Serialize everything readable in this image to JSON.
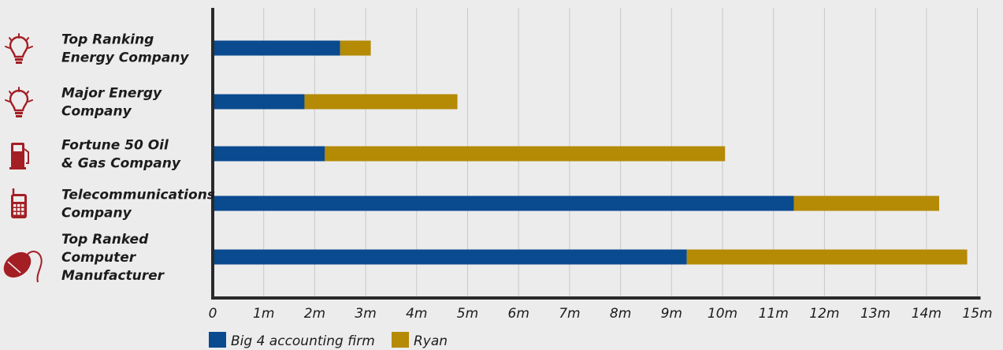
{
  "chart_data": {
    "type": "bar",
    "orientation": "horizontal",
    "stacked": true,
    "categories": [
      {
        "lines": [
          "Top Ranking",
          "Energy Company"
        ],
        "icon": "lightbulb-icon"
      },
      {
        "lines": [
          "Major Energy",
          "Company"
        ],
        "icon": "lightbulb-icon"
      },
      {
        "lines": [
          "Fortune 50 Oil",
          "& Gas Company"
        ],
        "icon": "fuel-pump-icon"
      },
      {
        "lines": [
          "Telecommunications",
          "Company"
        ],
        "icon": "mobile-phone-icon"
      },
      {
        "lines": [
          "Top Ranked",
          "Computer",
          "Manufacturer"
        ],
        "icon": "computer-mouse-icon"
      }
    ],
    "series": [
      {
        "name": "Big 4 accounting firm",
        "color": "#0a4a8f",
        "values": [
          2.5,
          1.8,
          2.2,
          11.4,
          9.3
        ]
      },
      {
        "name": "Ryan",
        "color": "#b58a05",
        "values": [
          0.6,
          3.0,
          7.85,
          2.85,
          5.5
        ]
      }
    ],
    "xlim": [
      0,
      15
    ],
    "x_ticks": [
      "0",
      "1m",
      "2m",
      "3m",
      "4m",
      "5m",
      "6m",
      "7m",
      "8m",
      "9m",
      "10m",
      "11m",
      "12m",
      "13m",
      "14m",
      "15m"
    ],
    "grid": true,
    "legend_position": "bottom-left",
    "icon_color": "#a31f24",
    "axis_color": "#2a2a2a",
    "grid_color": "#c9c9c9"
  }
}
